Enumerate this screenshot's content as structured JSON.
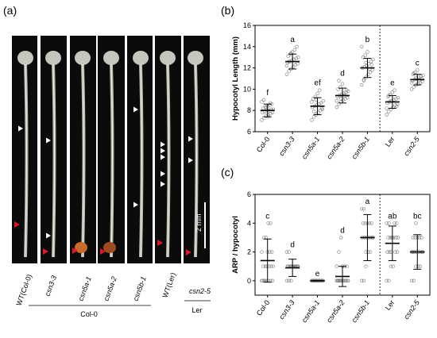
{
  "panels": {
    "a": "(a)",
    "b": "(b)",
    "c": "(c)"
  },
  "photo": {
    "seedlings": [
      "WT(Col-0)",
      "csn3-3",
      "csn5a-1",
      "csn5a-2",
      "csn5b-1",
      "WT(Ler)",
      "csn2-5"
    ],
    "group_col0": "Col-0",
    "group_ler": "Ler",
    "scale_bar": "2 mm",
    "colors": {
      "background": "#0b0b0b",
      "stem": "#c9c6bd",
      "white_arrow": "#ffffff",
      "red_arrow": "#e0162b"
    }
  },
  "chart_data": [
    {
      "panel": "b",
      "type": "scatter",
      "ylabel": "Hypocotyl Length (mm)",
      "ylim": [
        6,
        16
      ],
      "yticks": [
        6,
        8,
        10,
        12,
        14,
        16
      ],
      "categories": [
        "Col-0",
        "csn3-3",
        "csn5a-1",
        "csn5a-2",
        "csn5b-1",
        "Ler",
        "csn2-5"
      ],
      "means": [
        8.0,
        12.6,
        8.4,
        9.4,
        12.0,
        8.8,
        10.9
      ],
      "sd": [
        0.6,
        0.7,
        0.8,
        0.7,
        0.9,
        0.6,
        0.5
      ],
      "letters": [
        "f",
        "a",
        "ef",
        "d",
        "b",
        "e",
        "c"
      ],
      "divider_after": "csn5b-1",
      "points": [
        [
          7.1,
          7.3,
          7.5,
          7.6,
          7.7,
          7.8,
          7.8,
          7.9,
          8.0,
          8.0,
          8.1,
          8.1,
          8.2,
          8.3,
          8.4,
          8.5,
          8.6,
          8.8,
          9.0,
          8.3,
          7.4,
          8.7
        ],
        [
          11.4,
          11.7,
          11.9,
          12.1,
          12.3,
          12.4,
          12.5,
          12.6,
          12.7,
          12.8,
          12.9,
          13.0,
          13.1,
          13.3,
          13.5,
          13.7,
          14.0,
          12.2,
          12.6,
          13.4
        ],
        [
          7.1,
          7.4,
          7.6,
          7.8,
          8.0,
          8.1,
          8.3,
          8.4,
          8.5,
          8.6,
          8.7,
          8.9,
          9.1,
          9.3,
          9.6,
          9.9,
          8.2,
          8.8,
          7.9,
          9.0
        ],
        [
          8.3,
          8.6,
          8.8,
          9.0,
          9.1,
          9.2,
          9.3,
          9.4,
          9.5,
          9.6,
          9.7,
          9.8,
          10.0,
          10.2,
          10.5,
          9.4,
          9.9,
          8.9,
          10.8,
          9.1
        ],
        [
          10.4,
          10.8,
          11.1,
          11.4,
          11.6,
          11.8,
          12.0,
          12.1,
          12.2,
          12.4,
          12.6,
          12.8,
          13.0,
          13.2,
          13.5,
          11.9,
          12.3,
          14.0,
          10.9,
          12.5
        ],
        [
          7.6,
          7.9,
          8.1,
          8.3,
          8.5,
          8.6,
          8.7,
          8.8,
          8.9,
          9.0,
          9.1,
          9.2,
          9.3,
          9.5,
          9.7,
          9.9,
          8.4,
          8.2,
          9.4,
          8.9
        ],
        [
          10.0,
          10.2,
          10.4,
          10.5,
          10.6,
          10.7,
          10.8,
          10.9,
          11.0,
          11.1,
          11.2,
          11.3,
          11.4,
          11.6,
          11.8,
          10.9,
          11.0,
          10.6,
          11.5,
          11.1
        ]
      ]
    },
    {
      "panel": "c",
      "type": "scatter",
      "ylabel": "ARP / hypocotyl",
      "ylim": [
        -1,
        6
      ],
      "yticks": [
        0,
        2,
        4,
        6
      ],
      "categories": [
        "Col-0",
        "csn3-3",
        "csn5a-1",
        "csn5a-2",
        "csn5b-1",
        "Ler",
        "csn2-5"
      ],
      "means": [
        1.4,
        0.9,
        0.0,
        0.3,
        3.0,
        2.6,
        2.0
      ],
      "sd": [
        1.5,
        0.6,
        0.0,
        0.7,
        1.6,
        1.2,
        1.2
      ],
      "letters": [
        "c",
        "d",
        "e",
        "d",
        "a",
        "ab",
        "bc"
      ],
      "divider_after": "csn5b-1",
      "points": [
        [
          0,
          0,
          0,
          0,
          0,
          0,
          0,
          0,
          1,
          1,
          1,
          1,
          1,
          1,
          2,
          2,
          2,
          2,
          3,
          3,
          4,
          4
        ],
        [
          0,
          0,
          0,
          1,
          1,
          1,
          1,
          1,
          1,
          1,
          1,
          1,
          1,
          1,
          1,
          1,
          1,
          2,
          2,
          1
        ],
        [
          0,
          0,
          0,
          0,
          0,
          0,
          0,
          0,
          0,
          0,
          0,
          0,
          0,
          0,
          0,
          0,
          0,
          0,
          0,
          0
        ],
        [
          0,
          0,
          0,
          0,
          0,
          0,
          0,
          0,
          0,
          0,
          0,
          0,
          0,
          0,
          1,
          1,
          1,
          1,
          2,
          3
        ],
        [
          0,
          0,
          1,
          2,
          2,
          3,
          3,
          3,
          3,
          3,
          3,
          3,
          4,
          4,
          4,
          4,
          4,
          5,
          5,
          2
        ],
        [
          0,
          0,
          1,
          1,
          2,
          2,
          2,
          2,
          3,
          3,
          3,
          3,
          3,
          3,
          3,
          4,
          4,
          4,
          4,
          2
        ],
        [
          0,
          0,
          1,
          1,
          1,
          2,
          2,
          2,
          2,
          2,
          2,
          2,
          3,
          3,
          3,
          3,
          3,
          2,
          2,
          4
        ]
      ]
    }
  ]
}
